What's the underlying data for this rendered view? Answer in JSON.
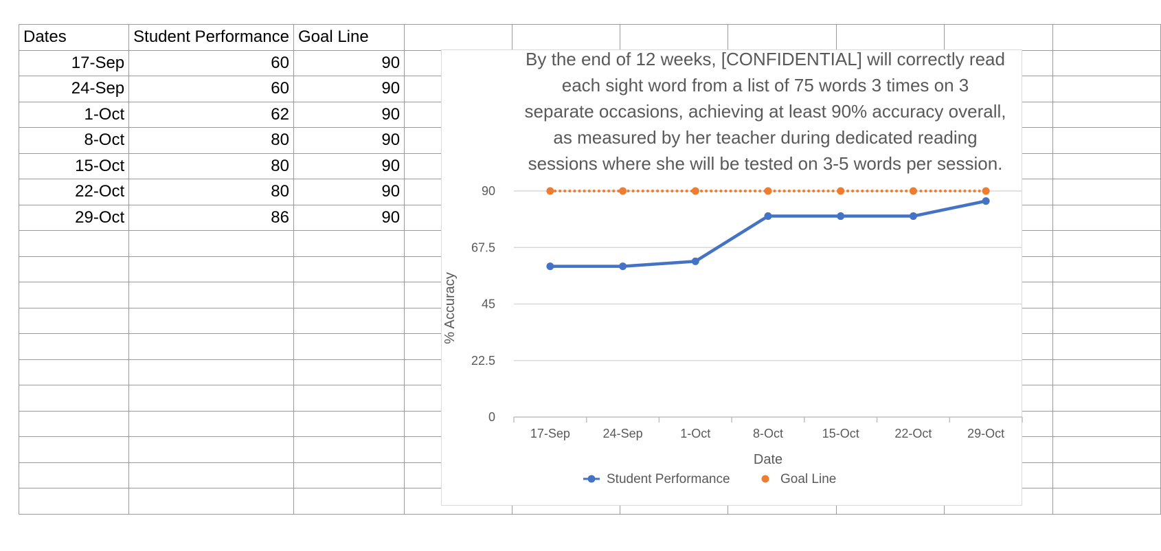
{
  "sheet": {
    "headers": [
      "Dates",
      "Student Performance",
      "Goal Line"
    ],
    "rows": [
      [
        "17-Sep",
        "60",
        "90"
      ],
      [
        "24-Sep",
        "60",
        "90"
      ],
      [
        "1-Oct",
        "62",
        "90"
      ],
      [
        "8-Oct",
        "80",
        "90"
      ],
      [
        "15-Oct",
        "80",
        "90"
      ],
      [
        "22-Oct",
        "80",
        "90"
      ],
      [
        "29-Oct",
        "86",
        "90"
      ]
    ]
  },
  "chart_data": {
    "type": "line",
    "title_lines": [
      "By the end of 12 weeks, [CONFIDENTIAL] will correctly read",
      "each sight word from a list of 75 words 3 times on 3",
      "separate occasions, achieving at least 90% accuracy overall,",
      "as measured by her teacher during dedicated reading",
      "sessions where she will be tested on 3-5 words per session."
    ],
    "categories": [
      "17-Sep",
      "24-Sep",
      "1-Oct",
      "8-Oct",
      "15-Oct",
      "22-Oct",
      "29-Oct"
    ],
    "series": [
      {
        "name": "Student Performance",
        "values": [
          60,
          60,
          62,
          80,
          80,
          80,
          86
        ],
        "color": "#4472C4",
        "style": "solid"
      },
      {
        "name": "Goal Line",
        "values": [
          90,
          90,
          90,
          90,
          90,
          90,
          90
        ],
        "color": "#ED7D31",
        "style": "dotted"
      }
    ],
    "xlabel": "Date",
    "ylabel": "% Accuracy",
    "ylim": [
      0,
      90
    ],
    "yticks": [
      "0",
      "22.5",
      "45",
      "67.5",
      "90"
    ],
    "grid": true,
    "legend_position": "bottom"
  }
}
